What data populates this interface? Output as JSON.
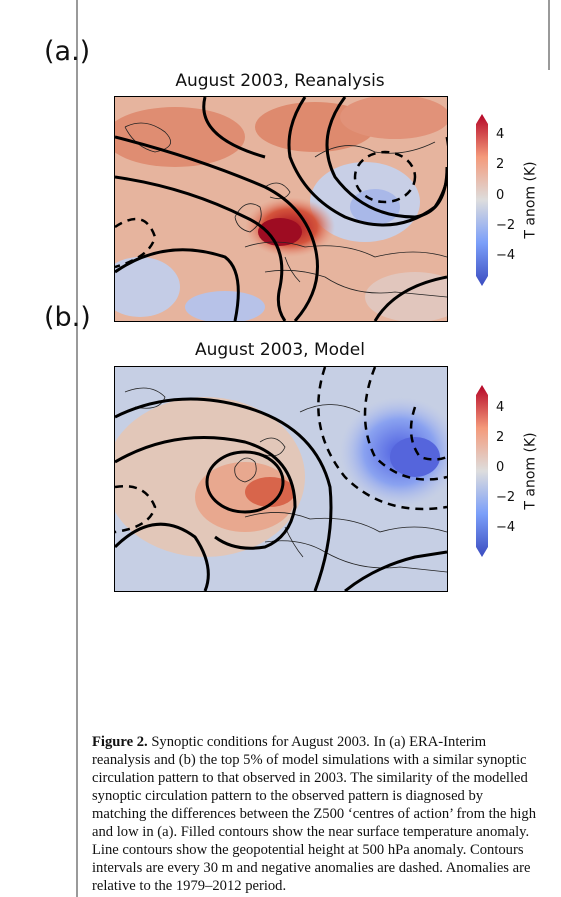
{
  "panels": [
    {
      "label": "(a.)",
      "title": "August 2003, Reanalysis"
    },
    {
      "label": "(b.)",
      "title": "August 2003, Model"
    }
  ],
  "colorbar": {
    "label": "T anom (K)",
    "ticks": [
      "4",
      "2",
      "0",
      "−2",
      "−4"
    ],
    "colors": [
      "#3b4cc0",
      "#7b9ff9",
      "#dddddd",
      "#f49a7b",
      "#b40426"
    ]
  },
  "caption": {
    "figure_label": "Figure 2.",
    "text": " Synoptic conditions for August 2003. In (a) ERA-Interim reanalysis and (b) the top 5% of model simulations with a similar synoptic circulation pattern to that observed in 2003. The similarity of the modelled synoptic circulation pattern to the observed pattern is diagnosed by matching the differences between the Z500 ‘centres of action’ from the high and low in (a). Filled contours show the near surface temperature anomaly. Line contours show the geopotential height at 500 hPa anomaly. Contours intervals are every 30 m and negative anomalies are dashed. Anomalies are relative to the 1979–2012 period."
  }
}
